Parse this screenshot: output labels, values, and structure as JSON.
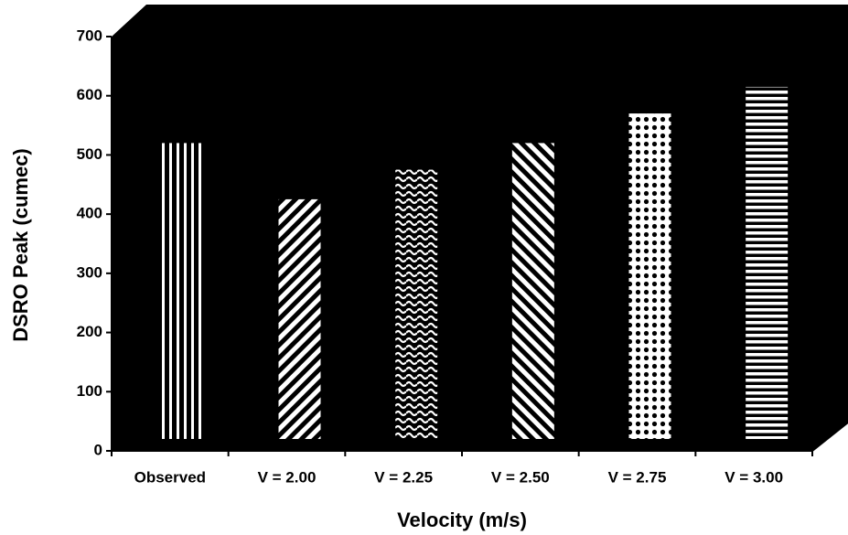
{
  "chart_data": {
    "type": "bar",
    "x_label": "Velocity (m/s)",
    "y_label": "DSRO Peak (cumec)",
    "categories": [
      "Observed",
      "V = 2.00",
      "V = 2.25",
      "V = 2.50",
      "V = 2.75",
      "V = 3.00"
    ],
    "values": [
      500,
      405,
      455,
      500,
      550,
      595
    ],
    "ylim": [
      0,
      700
    ],
    "yticks": [
      0,
      100,
      200,
      300,
      400,
      500,
      600,
      700
    ]
  }
}
